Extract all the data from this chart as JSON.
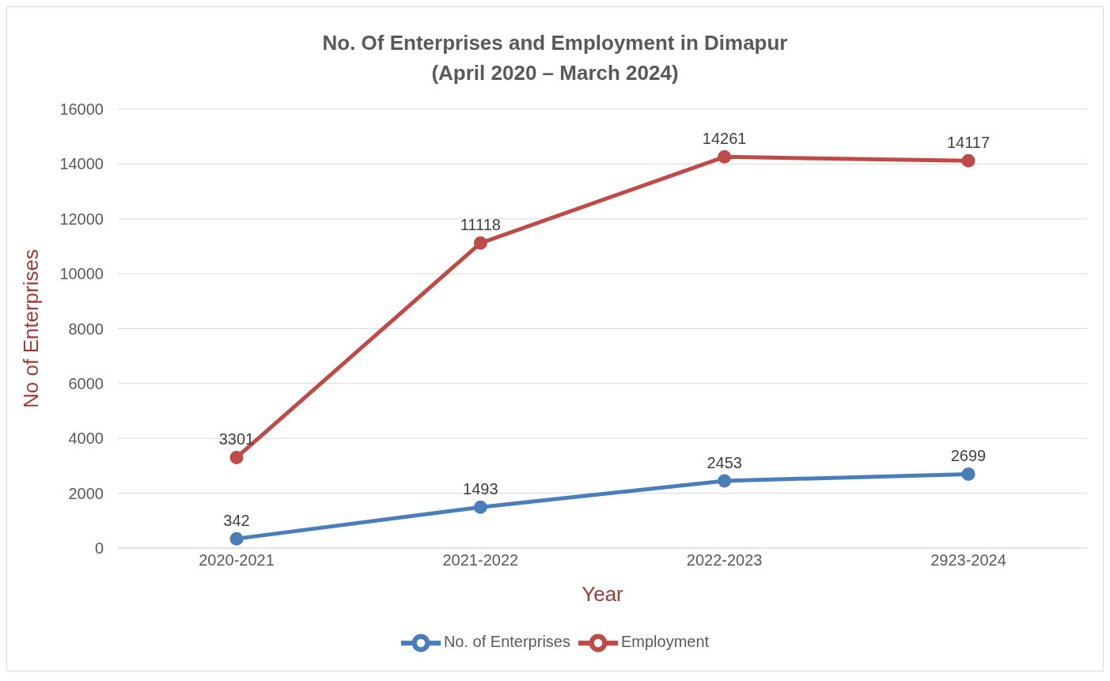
{
  "chart_data": {
    "type": "line",
    "title": "No. Of Enterprises and Employment in Dimapur\n(April 2020 – March 2024)",
    "xlabel": "Year",
    "ylabel": "No of Enterprises",
    "categories": [
      "2020-2021",
      "2021-2022",
      "2022-2023",
      "2923-2024"
    ],
    "series": [
      {
        "name": "No. of Enterprises",
        "color": "#4a7ebb",
        "values": [
          342,
          1493,
          2453,
          2699
        ]
      },
      {
        "name": "Employment",
        "color": "#be4b48",
        "values": [
          3301,
          11118,
          14261,
          14117
        ]
      }
    ],
    "ylim": [
      0,
      16000
    ],
    "yticks": [
      0,
      2000,
      4000,
      6000,
      8000,
      10000,
      12000,
      14000,
      16000
    ],
    "grid": "y",
    "legend": "bottom",
    "marker": "circle",
    "line_style": "solid",
    "data_labels": true
  }
}
